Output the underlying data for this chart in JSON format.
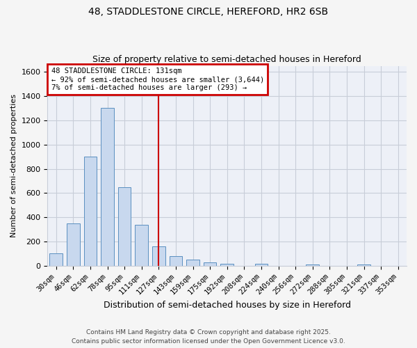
{
  "title1": "48, STADDLESTONE CIRCLE, HEREFORD, HR2 6SB",
  "title2": "Size of property relative to semi-detached houses in Hereford",
  "xlabel": "Distribution of semi-detached houses by size in Hereford",
  "ylabel": "Number of semi-detached properties",
  "categories": [
    "30sqm",
    "46sqm",
    "62sqm",
    "78sqm",
    "95sqm",
    "111sqm",
    "127sqm",
    "143sqm",
    "159sqm",
    "175sqm",
    "192sqm",
    "208sqm",
    "224sqm",
    "240sqm",
    "256sqm",
    "272sqm",
    "288sqm",
    "305sqm",
    "321sqm",
    "337sqm",
    "353sqm"
  ],
  "values": [
    100,
    350,
    900,
    1300,
    650,
    335,
    160,
    80,
    50,
    25,
    15,
    0,
    15,
    0,
    0,
    10,
    0,
    0,
    10,
    0,
    0
  ],
  "bar_color": "#c8d8ee",
  "bar_edge_color": "#5a8fc0",
  "vline_index": 6,
  "vline_color": "#cc0000",
  "annotation_text": "48 STADDLESTONE CIRCLE: 131sqm\n← 92% of semi-detached houses are smaller (3,644)\n7% of semi-detached houses are larger (293) →",
  "annotation_box_color": "#ffffff",
  "annotation_edge_color": "#cc0000",
  "ylim": [
    0,
    1650
  ],
  "background_color": "#f5f5f5",
  "plot_bg_color": "#edf0f7",
  "grid_color": "#c8cdd8",
  "footer1": "Contains HM Land Registry data © Crown copyright and database right 2025.",
  "footer2": "Contains public sector information licensed under the Open Government Licence v3.0."
}
